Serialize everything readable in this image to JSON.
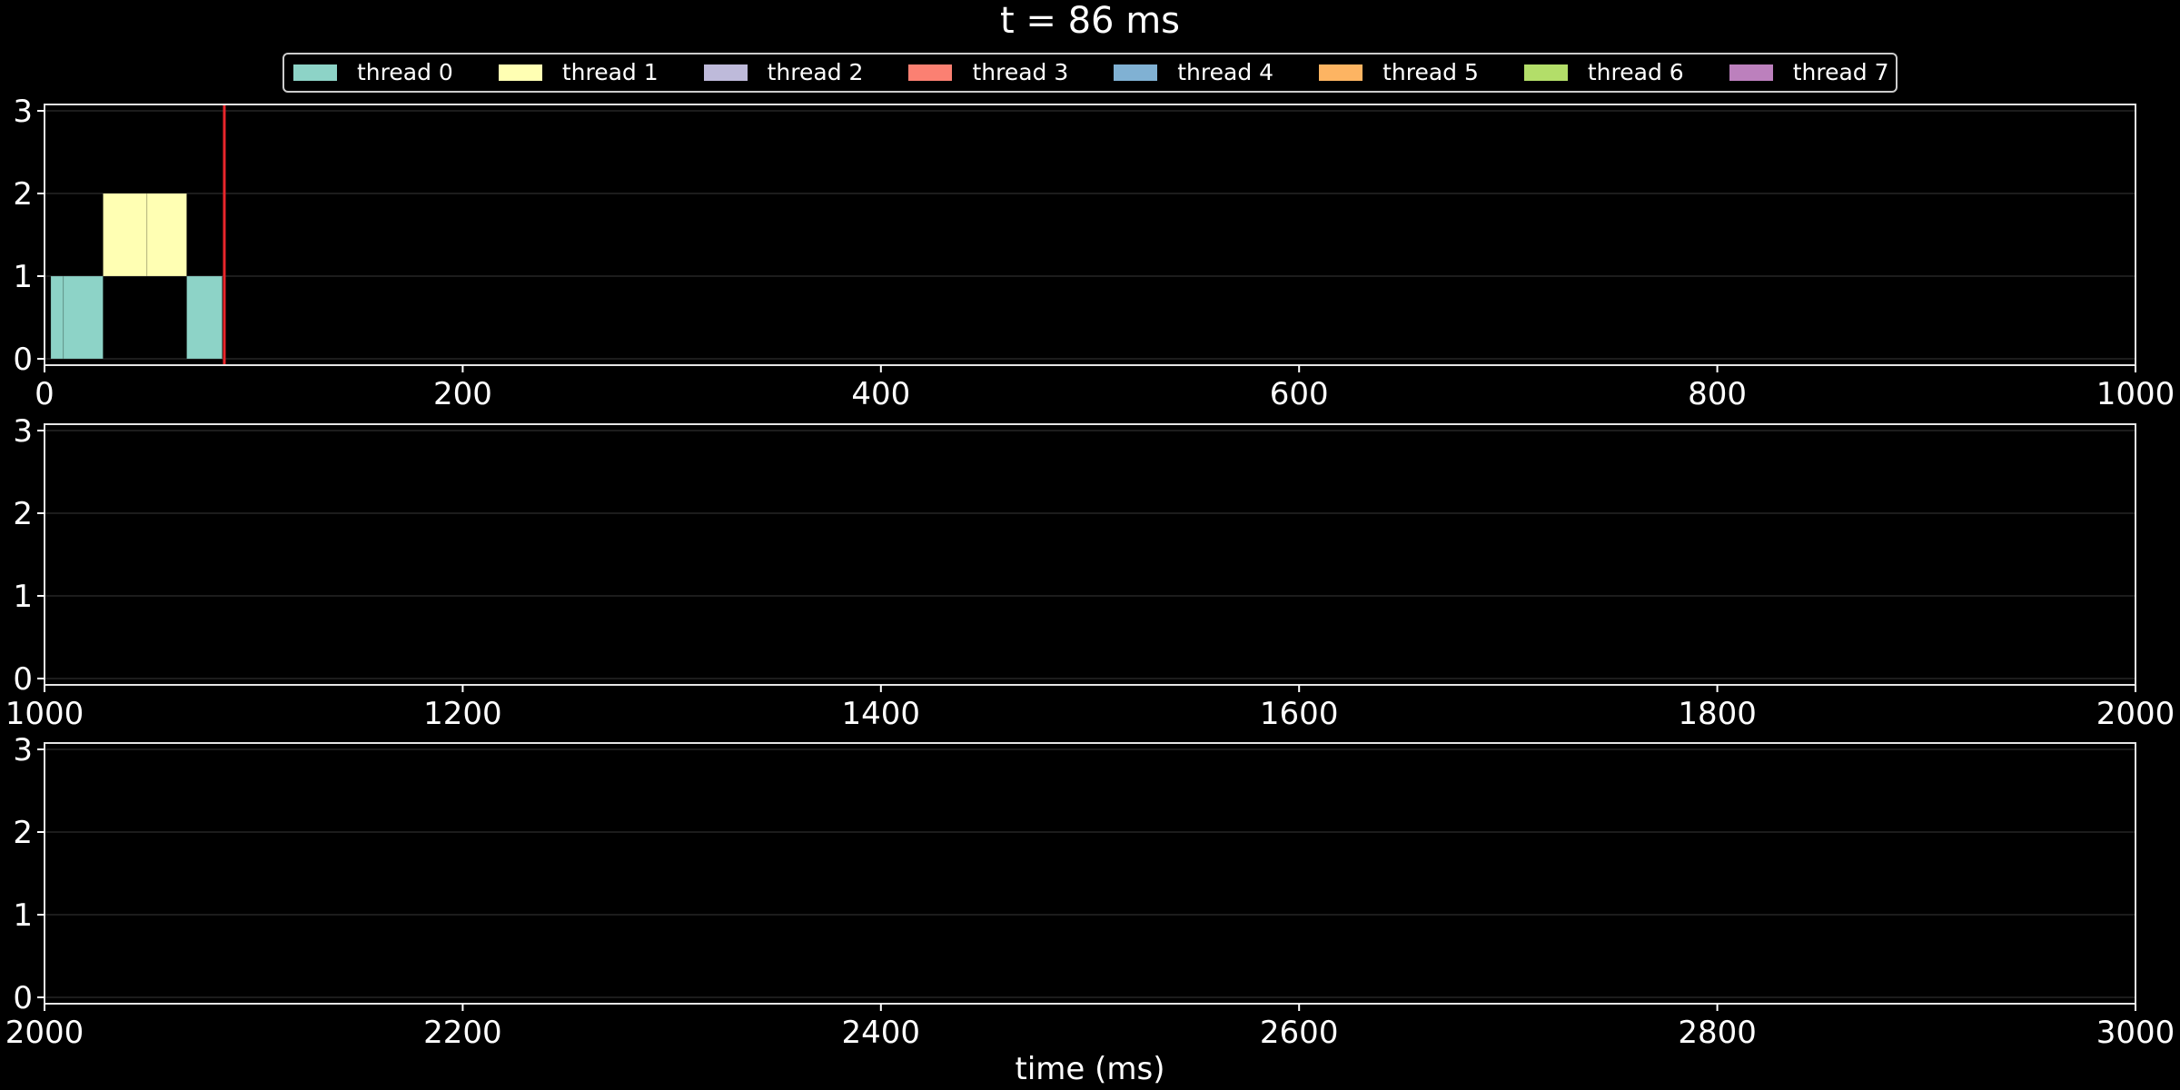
{
  "chart_data": {
    "type": "bar",
    "title": "t = 86 ms",
    "xlabel": "time (ms)",
    "ylabel": "",
    "legend_position": "top-center",
    "grid": true,
    "current_time_ms": 86,
    "cursor_color": "#e8262b",
    "threads": [
      {
        "name": "thread 0",
        "color": "#8dd3c7"
      },
      {
        "name": "thread 1",
        "color": "#ffffb3"
      },
      {
        "name": "thread 2",
        "color": "#bebada"
      },
      {
        "name": "thread 3",
        "color": "#fb8072"
      },
      {
        "name": "thread 4",
        "color": "#80b1d3"
      },
      {
        "name": "thread 5",
        "color": "#fdb462"
      },
      {
        "name": "thread 6",
        "color": "#b3de69"
      },
      {
        "name": "thread 7",
        "color": "#bc80bd"
      }
    ],
    "panels": [
      {
        "xlim": [
          0,
          1000
        ],
        "ylim": [
          0,
          3
        ],
        "xticks": [
          0,
          200,
          400,
          600,
          800,
          1000
        ],
        "yticks": [
          0,
          1,
          2,
          3
        ]
      },
      {
        "xlim": [
          1000,
          2000
        ],
        "ylim": [
          0,
          3
        ],
        "xticks": [
          1000,
          1200,
          1400,
          1600,
          1800,
          2000
        ],
        "yticks": [
          0,
          1,
          2,
          3
        ]
      },
      {
        "xlim": [
          2000,
          3000
        ],
        "ylim": [
          0,
          3
        ],
        "xticks": [
          2000,
          2200,
          2400,
          2600,
          2800,
          3000
        ],
        "yticks": [
          0,
          1,
          2,
          3
        ]
      }
    ],
    "segments": [
      {
        "thread": 0,
        "lane": 0,
        "start": 3,
        "end": 9
      },
      {
        "thread": 0,
        "lane": 0,
        "start": 9,
        "end": 28
      },
      {
        "thread": 1,
        "lane": 1,
        "start": 28,
        "end": 49
      },
      {
        "thread": 1,
        "lane": 1,
        "start": 49,
        "end": 68
      },
      {
        "thread": 0,
        "lane": 0,
        "start": 68,
        "end": 85
      }
    ]
  }
}
